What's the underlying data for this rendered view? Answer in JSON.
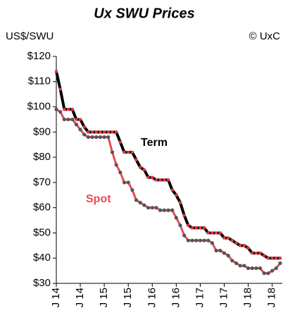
{
  "chart_data": {
    "type": "line",
    "title": "Ux SWU Prices",
    "y_axis_label": "US$/SWU",
    "credit": "© UxC",
    "annotations": [
      "Term",
      "Spot"
    ],
    "categories": [
      "J 14",
      null,
      null,
      null,
      null,
      null,
      "J 14",
      null,
      null,
      null,
      null,
      null,
      "J 15",
      null,
      null,
      null,
      null,
      null,
      "J 15",
      null,
      null,
      null,
      null,
      null,
      "J 16",
      null,
      null,
      null,
      null,
      null,
      "J 16",
      null,
      null,
      null,
      null,
      null,
      "J 17",
      null,
      null,
      null,
      null,
      null,
      "J 17",
      null,
      null,
      null,
      null,
      null,
      "J 18",
      null,
      null,
      null,
      null,
      null,
      "J 18",
      null,
      null
    ],
    "series": [
      {
        "name": "Term",
        "color": "#000000",
        "marker_color": "#e8323c",
        "values": [
          114,
          107,
          99,
          99,
          99,
          95,
          95,
          92,
          90,
          90,
          90,
          90,
          90,
          90,
          90,
          90,
          86,
          82,
          82,
          82,
          79,
          76,
          75,
          72,
          72,
          71,
          71,
          71,
          71,
          67,
          65,
          62,
          57,
          53,
          52,
          52,
          52,
          52,
          50,
          50,
          50,
          50,
          48,
          48,
          47,
          46,
          45,
          45,
          44,
          42,
          42,
          42,
          41,
          40,
          40,
          40,
          40
        ]
      },
      {
        "name": "Spot",
        "color": "#e84c55",
        "marker_color": "#555555",
        "values": [
          99,
          98,
          95,
          95,
          95,
          93,
          91,
          89,
          88,
          88,
          88,
          88,
          88,
          88,
          82,
          77,
          74,
          70,
          70,
          67,
          63,
          62,
          61,
          60,
          60,
          60,
          59,
          59,
          59,
          59,
          56,
          53,
          49,
          47,
          47,
          47,
          47,
          47,
          47,
          46,
          43,
          43,
          42,
          41,
          39,
          38,
          37,
          37,
          36,
          36,
          36,
          36,
          34,
          34,
          35,
          36,
          38
        ]
      }
    ],
    "ylim": [
      30,
      120
    ],
    "yticks": [
      {
        "value": 30,
        "label": "$30"
      },
      {
        "value": 40,
        "label": "$40"
      },
      {
        "value": 50,
        "label": "$50"
      },
      {
        "value": 60,
        "label": "$60"
      },
      {
        "value": 70,
        "label": "$70"
      },
      {
        "value": 80,
        "label": "$80"
      },
      {
        "value": 90,
        "label": "$90"
      },
      {
        "value": 100,
        "label": "$100"
      },
      {
        "value": 110,
        "label": "$110"
      },
      {
        "value": 120,
        "label": "$120"
      }
    ],
    "grid": false
  }
}
